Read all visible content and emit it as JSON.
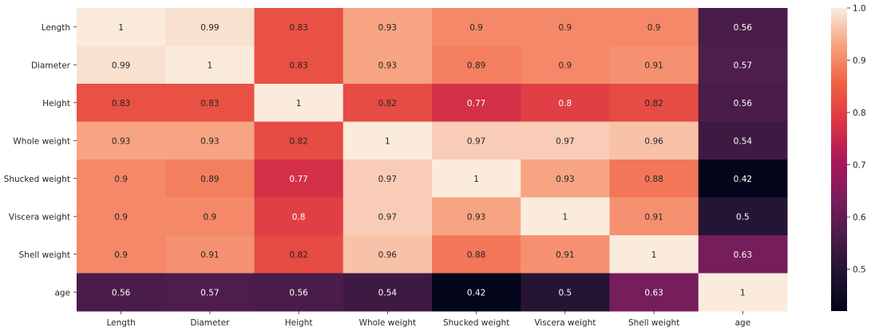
{
  "chart_data": {
    "type": "heatmap",
    "title": "",
    "xlabel": "",
    "ylabel": "",
    "x_categories": [
      "Length",
      "Diameter",
      "Height",
      "Whole weight",
      "Shucked weight",
      "Viscera weight",
      "Shell weight",
      "age"
    ],
    "y_categories": [
      "Length",
      "Diameter",
      "Height",
      "Whole weight",
      "Shucked weight",
      "Viscera weight",
      "Shell weight",
      "age"
    ],
    "values": [
      [
        1,
        0.99,
        0.83,
        0.93,
        0.9,
        0.9,
        0.9,
        0.56
      ],
      [
        0.99,
        1,
        0.83,
        0.93,
        0.89,
        0.9,
        0.91,
        0.57
      ],
      [
        0.83,
        0.83,
        1,
        0.82,
        0.77,
        0.8,
        0.82,
        0.56
      ],
      [
        0.93,
        0.93,
        0.82,
        1,
        0.97,
        0.97,
        0.96,
        0.54
      ],
      [
        0.9,
        0.89,
        0.77,
        0.97,
        1,
        0.93,
        0.88,
        0.42
      ],
      [
        0.9,
        0.9,
        0.8,
        0.97,
        0.93,
        1,
        0.91,
        0.5
      ],
      [
        0.9,
        0.91,
        0.82,
        0.96,
        0.88,
        0.91,
        1,
        0.63
      ],
      [
        0.56,
        0.57,
        0.56,
        0.54,
        0.42,
        0.5,
        0.63,
        1
      ]
    ],
    "annotations": [
      [
        "1",
        "0.99",
        "0.83",
        "0.93",
        "0.9",
        "0.9",
        "0.9",
        "0.56"
      ],
      [
        "0.99",
        "1",
        "0.83",
        "0.93",
        "0.89",
        "0.9",
        "0.91",
        "0.57"
      ],
      [
        "0.83",
        "0.83",
        "1",
        "0.82",
        "0.77",
        "0.8",
        "0.82",
        "0.56"
      ],
      [
        "0.93",
        "0.93",
        "0.82",
        "1",
        "0.97",
        "0.97",
        "0.96",
        "0.54"
      ],
      [
        "0.9",
        "0.89",
        "0.77",
        "0.97",
        "1",
        "0.93",
        "0.88",
        "0.42"
      ],
      [
        "0.9",
        "0.9",
        "0.8",
        "0.97",
        "0.93",
        "1",
        "0.91",
        "0.5"
      ],
      [
        "0.9",
        "0.91",
        "0.82",
        "0.96",
        "0.88",
        "0.91",
        "1",
        "0.63"
      ],
      [
        "0.56",
        "0.57",
        "0.56",
        "0.54",
        "0.42",
        "0.5",
        "0.63",
        "1"
      ]
    ],
    "colormap": "rocket",
    "vmin": 0.42,
    "vmax": 1.0,
    "colorbar": {
      "ticks": [
        0.5,
        0.6,
        0.7,
        0.8,
        0.9,
        1.0
      ],
      "tick_labels": [
        "0.5",
        "0.6",
        "0.7",
        "0.8",
        "0.9",
        "1.0"
      ]
    },
    "grid": false,
    "legend": "colorbar-right"
  }
}
